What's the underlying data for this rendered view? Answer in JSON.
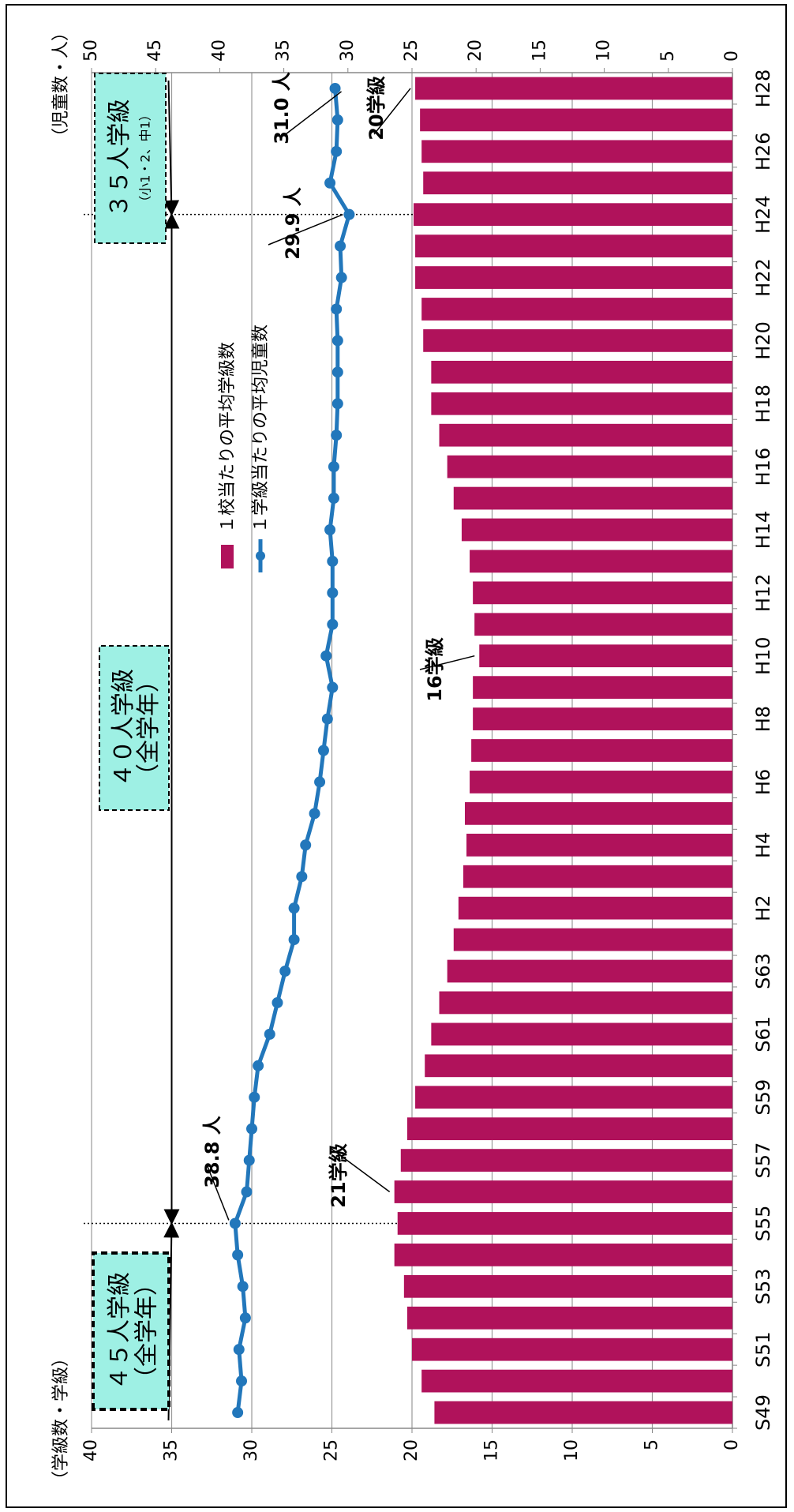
{
  "chart_data": {
    "type": "bar",
    "ylabel": "（学級数・学級）",
    "y2label": "（児童数・人）",
    "categories": [
      "S49",
      null,
      "S51",
      null,
      "S53",
      null,
      "S55",
      null,
      "S57",
      null,
      "S59",
      null,
      "S61",
      null,
      "S63",
      null,
      "H2",
      null,
      "H4",
      null,
      "H6",
      null,
      "H8",
      null,
      "H10",
      null,
      "H12",
      null,
      "H14",
      null,
      "H16",
      null,
      "H18",
      null,
      "H20",
      null,
      "H22",
      null,
      "H24",
      null,
      "H26",
      null,
      "H28"
    ],
    "series": [
      {
        "name": "１校当たりの平均学級数",
        "type": "bar",
        "color": "#b0125b",
        "values": [
          18.6,
          19.4,
          20.0,
          20.3,
          20.5,
          21.1,
          20.9,
          21.1,
          20.7,
          20.3,
          19.8,
          19.2,
          18.8,
          18.3,
          17.8,
          17.4,
          17.1,
          16.8,
          16.6,
          16.7,
          16.4,
          16.3,
          16.2,
          16.2,
          15.8,
          16.1,
          16.2,
          16.4,
          16.9,
          17.4,
          17.8,
          18.3,
          18.8,
          18.8,
          19.3,
          19.4,
          19.8,
          19.8,
          19.9,
          19.3,
          19.4,
          19.5,
          19.8
        ]
      },
      {
        "name": "１学級当たりの平均児童数",
        "type": "line",
        "axis": "y2",
        "color": "#2277bb",
        "values": [
          38.6,
          38.3,
          38.5,
          38.0,
          38.2,
          38.6,
          38.8,
          37.9,
          37.7,
          37.5,
          37.3,
          37.0,
          36.1,
          35.5,
          34.9,
          34.2,
          34.2,
          33.6,
          33.3,
          32.6,
          32.2,
          31.9,
          31.6,
          31.2,
          31.7,
          31.2,
          31.2,
          31.2,
          31.4,
          31.1,
          31.1,
          30.9,
          30.8,
          30.8,
          30.8,
          30.9,
          30.5,
          30.6,
          29.9,
          31.4,
          30.9,
          30.8,
          31.0
        ]
      }
    ],
    "ylim": [
      0,
      40
    ],
    "yticks": [
      0,
      5,
      10,
      15,
      20,
      25,
      30,
      35,
      40
    ],
    "y2lim": [
      0,
      50
    ],
    "y2ticks": [
      0,
      5,
      10,
      15,
      20,
      25,
      30,
      35,
      40,
      45,
      50
    ],
    "grid": true,
    "annotations": [
      "38.8 人",
      "29.9 人",
      "31.0 人",
      "21学級",
      "16学級",
      "20学級"
    ],
    "boxes": [
      [
        "４５人学級",
        "（全学年）"
      ],
      [
        "４０人学級",
        "（全学年）"
      ],
      [
        "３５人学級",
        "（小1・2、中1）"
      ]
    ]
  }
}
